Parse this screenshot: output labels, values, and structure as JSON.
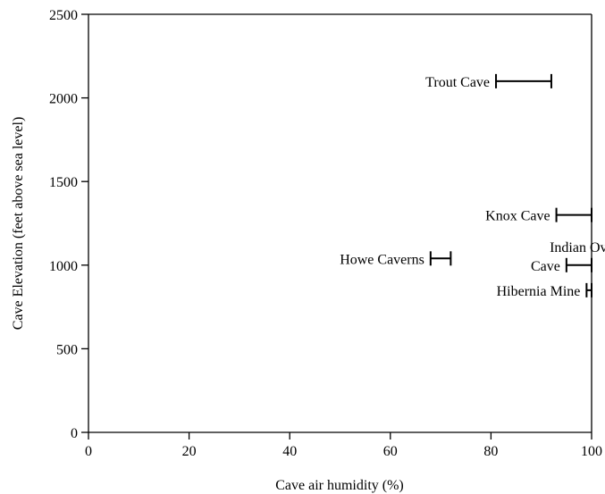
{
  "chart_data": {
    "type": "range",
    "title": "",
    "xlabel": "Cave air humidity (%)",
    "ylabel": "Cave Elevation (feet above sea level)",
    "xlim": [
      0,
      100
    ],
    "ylim": [
      0,
      2500
    ],
    "x_ticks": [
      0,
      20,
      40,
      60,
      80,
      100
    ],
    "y_ticks": [
      0,
      500,
      1000,
      1500,
      2000,
      2500
    ],
    "grid": false,
    "legend": "none",
    "series": [
      {
        "name": "Trout Cave",
        "label_lines": [
          "Trout Cave"
        ],
        "elevation": 2100,
        "humidity_min": 81,
        "humidity_max": 92
      },
      {
        "name": "Knox Cave",
        "label_lines": [
          "Knox Cave"
        ],
        "elevation": 1300,
        "humidity_min": 93,
        "humidity_max": 100
      },
      {
        "name": "Howe Caverns",
        "label_lines": [
          "Howe Caverns"
        ],
        "elevation": 1040,
        "humidity_min": 68,
        "humidity_max": 72
      },
      {
        "name": "Indian Oven Cave",
        "label_lines": [
          "Indian Oven",
          "Cave"
        ],
        "elevation": 1000,
        "humidity_min": 95,
        "humidity_max": 100
      },
      {
        "name": "Hibernia Mine",
        "label_lines": [
          "Hibernia Mine"
        ],
        "elevation": 850,
        "humidity_min": 99,
        "humidity_max": 100
      }
    ]
  }
}
